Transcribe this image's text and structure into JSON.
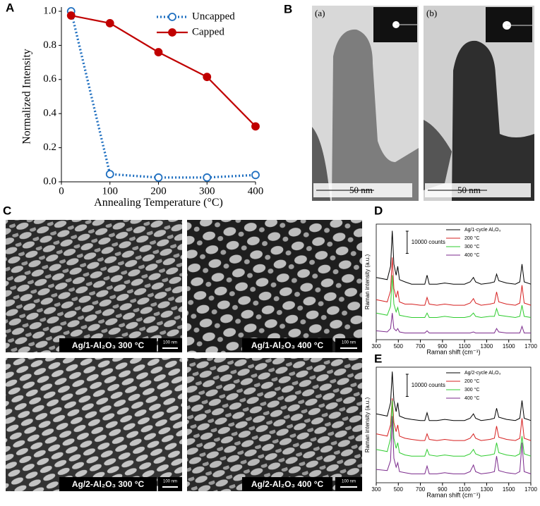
{
  "panel_labels": [
    "A",
    "B",
    "C",
    "D",
    "E"
  ],
  "tem_images": [
    {
      "label": "(a)",
      "scale_bar": "50 nm"
    },
    {
      "label": "(b)",
      "scale_bar": "50 nm"
    }
  ],
  "sem_images": [
    {
      "caption": "Ag/1-Al₂O₃ 300 °C",
      "scale_bar": "100 nm"
    },
    {
      "caption": "Ag/1-Al₂O₃ 400 °C",
      "scale_bar": "100 nm"
    },
    {
      "caption": "Ag/2-Al₂O₃ 300 °C",
      "scale_bar": "100 nm"
    },
    {
      "caption": "Ag/2-Al₂O₃ 400 °C",
      "scale_bar": "100 nm"
    }
  ],
  "chart_data": [
    {
      "type": "line",
      "frame": "axes",
      "x_label": "Annealing Temperature (°C)",
      "y_label": "Normalized Intensity",
      "x": [
        20,
        100,
        200,
        300,
        400
      ],
      "series": [
        {
          "name": "Uncapped",
          "color": "#1f6fc0",
          "line_style": "dotted",
          "marker": "open",
          "values": [
            1.0,
            0.045,
            0.025,
            0.025,
            0.04
          ]
        },
        {
          "name": "Capped",
          "color": "#c00000",
          "line_style": "solid",
          "marker": "filled",
          "values": [
            0.975,
            0.93,
            0.76,
            0.615,
            0.325
          ]
        }
      ],
      "xlim": [
        0,
        400
      ],
      "xticks": [
        0,
        100,
        200,
        300,
        400
      ],
      "ylim": [
        0,
        1
      ],
      "yticks": [
        {
          "value": 0,
          "label": "0.0"
        },
        0.2,
        0.4,
        0.6,
        0.8,
        {
          "value": 1,
          "label": "1.0"
        }
      ],
      "legend": "upper right"
    },
    {
      "type": "line",
      "frame": "box",
      "x_label": "Raman shift (cm⁻¹)",
      "y_label": "Raman intensity (a.u.)",
      "scale_bar": {
        "value": 10000,
        "label": "10000 counts"
      },
      "x": [
        300,
        400,
        430,
        445,
        460,
        480,
        495,
        510,
        560,
        620,
        700,
        740,
        760,
        780,
        850,
        920,
        1000,
        1100,
        1150,
        1180,
        1200,
        1250,
        1330,
        1370,
        1390,
        1410,
        1480,
        1560,
        1600,
        1620,
        1640,
        1700
      ],
      "series": [
        {
          "name": "Ag/1-cycle Al₂O₃",
          "color": "#000000",
          "values": [
            28000,
            27000,
            33000,
            49000,
            34000,
            29000,
            33000,
            27000,
            26000,
            25000,
            25000,
            25000,
            29000,
            25000,
            25000,
            25500,
            25000,
            25000,
            26000,
            28000,
            26000,
            25000,
            25500,
            26000,
            29500,
            26500,
            25500,
            25000,
            26000,
            34000,
            26000,
            25000
          ]
        },
        {
          "name": "200 °C",
          "color": "#d62020",
          "values": [
            18000,
            17000,
            22000,
            37000,
            23000,
            19000,
            22000,
            17000,
            16000,
            16000,
            15500,
            15500,
            19000,
            16000,
            15500,
            16000,
            15500,
            15500,
            16500,
            18500,
            16500,
            15500,
            16000,
            16500,
            21500,
            17000,
            16000,
            15500,
            16500,
            24500,
            16500,
            15500
          ]
        },
        {
          "name": "300 °C",
          "color": "#2fcc2f",
          "values": [
            12000,
            11000,
            15000,
            29000,
            16000,
            12500,
            14500,
            11000,
            10500,
            10000,
            10000,
            10000,
            12000,
            10000,
            10000,
            10500,
            10000,
            10000,
            10500,
            12000,
            10500,
            10000,
            10500,
            10500,
            14000,
            11000,
            10500,
            10000,
            10500,
            15500,
            10500,
            10000
          ]
        },
        {
          "name": "400 °C",
          "color": "#7b2a8c",
          "values": [
            4000,
            3500,
            5000,
            12000,
            5000,
            4000,
            5000,
            3500,
            3000,
            3000,
            3000,
            3000,
            4000,
            3000,
            3000,
            3000,
            3000,
            3000,
            3000,
            3500,
            3000,
            3000,
            3000,
            3000,
            5000,
            3500,
            3000,
            3000,
            3000,
            6000,
            3000,
            3000
          ]
        }
      ],
      "xlim": [
        300,
        1700
      ],
      "xticks": [
        300,
        500,
        700,
        900,
        1100,
        1300,
        1500,
        1700
      ],
      "ylim": [
        0,
        52000
      ],
      "legend": "upper right"
    },
    {
      "type": "line",
      "frame": "box",
      "x_label": "Raman shift (cm⁻¹)",
      "y_label": "Raman intensity (a.u.)",
      "scale_bar": {
        "value": 10000,
        "label": "10000 counts"
      },
      "x": [
        300,
        400,
        430,
        445,
        460,
        480,
        495,
        510,
        560,
        620,
        700,
        740,
        760,
        780,
        850,
        920,
        1000,
        1100,
        1150,
        1180,
        1200,
        1250,
        1330,
        1370,
        1390,
        1410,
        1480,
        1560,
        1600,
        1620,
        1640,
        1700
      ],
      "series": [
        {
          "name": "Ag/2-cycle Al₂O₃",
          "color": "#000000",
          "values": [
            31000,
            30000,
            36000,
            50000,
            37000,
            32000,
            36000,
            30000,
            29000,
            28500,
            28000,
            28000,
            31500,
            28000,
            28000,
            28500,
            28000,
            28000,
            29000,
            31000,
            29000,
            28000,
            28500,
            29000,
            33500,
            29500,
            28500,
            28000,
            29000,
            37000,
            29000,
            28000
          ]
        },
        {
          "name": "200 °C",
          "color": "#d62020",
          "values": [
            22000,
            21000,
            26000,
            38000,
            27000,
            23000,
            26000,
            21000,
            20000,
            19500,
            19000,
            19000,
            22000,
            19500,
            19000,
            19500,
            19000,
            19000,
            20000,
            22000,
            20000,
            19000,
            19500,
            20000,
            25500,
            20500,
            19500,
            19000,
            20000,
            29000,
            20000,
            19000
          ]
        },
        {
          "name": "300 °C",
          "color": "#2fcc2f",
          "values": [
            15000,
            14000,
            20000,
            37000,
            20000,
            15500,
            18000,
            13500,
            12500,
            12000,
            12000,
            12000,
            15000,
            12500,
            12000,
            12500,
            12000,
            12000,
            13000,
            15000,
            13000,
            12000,
            12500,
            13000,
            18000,
            13500,
            12500,
            12000,
            13000,
            21000,
            13000,
            12000
          ]
        },
        {
          "name": "400 °C",
          "color": "#7b2a8c",
          "values": [
            6000,
            5500,
            10000,
            30000,
            11000,
            7000,
            9000,
            5000,
            4500,
            4000,
            4000,
            4000,
            7500,
            4000,
            4000,
            4500,
            4000,
            4000,
            5000,
            8000,
            5000,
            4000,
            4500,
            5000,
            12000,
            5500,
            4500,
            4000,
            5000,
            18000,
            5000,
            4000
          ]
        }
      ],
      "xlim": [
        300,
        1700
      ],
      "xticks": [
        300,
        500,
        700,
        900,
        1100,
        1300,
        1500,
        1700
      ],
      "ylim": [
        0,
        52000
      ],
      "legend": "upper right"
    }
  ]
}
